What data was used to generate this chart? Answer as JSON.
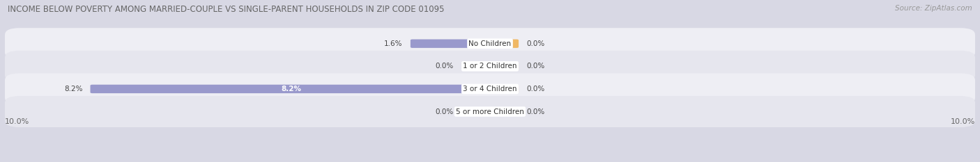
{
  "title": "INCOME BELOW POVERTY AMONG MARRIED-COUPLE VS SINGLE-PARENT HOUSEHOLDS IN ZIP CODE 01095",
  "source": "Source: ZipAtlas.com",
  "categories": [
    "No Children",
    "1 or 2 Children",
    "3 or 4 Children",
    "5 or more Children"
  ],
  "married_values": [
    1.6,
    0.0,
    8.2,
    0.0
  ],
  "single_values": [
    0.0,
    0.0,
    0.0,
    0.0
  ],
  "married_color": "#9999cc",
  "single_color": "#f0b865",
  "row_bg_colors": [
    "#eeeef4",
    "#e6e6ee",
    "#eeeef4",
    "#e6e6ee"
  ],
  "x_max": 10.0,
  "x_min": -10.0,
  "title_fontsize": 8.5,
  "source_fontsize": 7.5,
  "axis_label_fontsize": 8,
  "legend_fontsize": 8,
  "value_label_fontsize": 7.5,
  "cat_label_fontsize": 7.5,
  "background_color": "#d8d8e4",
  "value_label_color": "#444444",
  "title_color": "#666666"
}
